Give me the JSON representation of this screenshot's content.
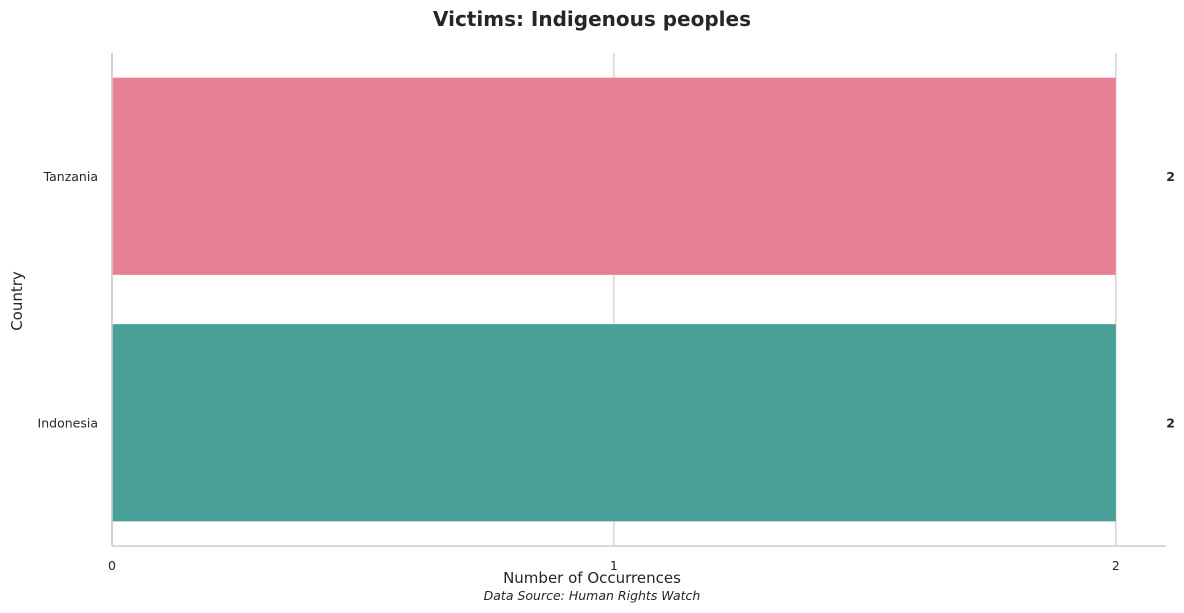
{
  "chart_data": {
    "type": "bar",
    "orientation": "horizontal",
    "title": "Victims: Indigenous peoples",
    "xlabel": "Number of Occurrences",
    "ylabel": "Country",
    "categories": [
      "Tanzania",
      "Indonesia"
    ],
    "values": [
      2,
      2
    ],
    "value_labels": [
      "2",
      "2"
    ],
    "colors": [
      "#e78092",
      "#479f98"
    ],
    "xlim": [
      0,
      2.1
    ],
    "xticks": [
      0,
      1,
      2
    ],
    "xtick_labels": [
      "0",
      "1",
      "2"
    ],
    "grid": "vertical",
    "source_note": "Data Source: Human Rights Watch"
  }
}
